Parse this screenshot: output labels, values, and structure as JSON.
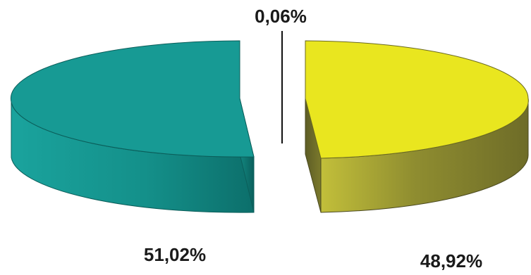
{
  "chart_data": {
    "type": "pie",
    "variant": "3d-exploded",
    "slices": [
      {
        "label": "51,02%",
        "value": 51.02,
        "top_color": "#179a94",
        "side_color": "#0f7d78"
      },
      {
        "label": "48,92%",
        "value": 48.92,
        "top_color": "#e9e61f",
        "side_color": "#8c8a2a"
      },
      {
        "label": "0,06%",
        "value": 0.06,
        "top_color": "#d8d81a",
        "side_color": "#111111"
      }
    ]
  }
}
